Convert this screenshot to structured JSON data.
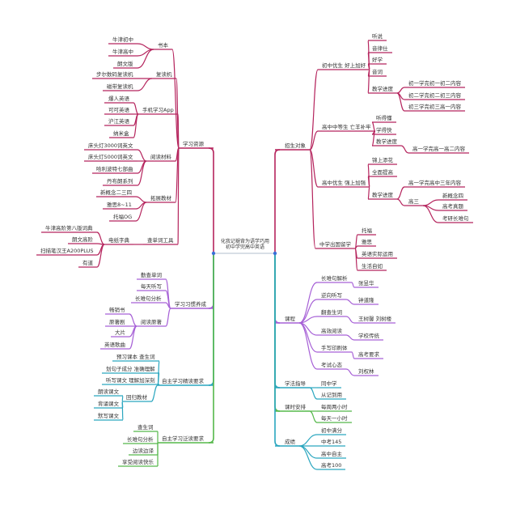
{
  "center": {
    "line1": "化我记褪背为语学巧用",
    "line2": "初中学完高中英语"
  },
  "colors": {
    "pink": "#b5245d",
    "purple": "#a660d6",
    "teal": "#2aa6bf",
    "green": "#55b84a",
    "dot": "#3a6fd8"
  },
  "left": [
    {
      "label": "学习资源",
      "color": "pink",
      "children": [
        {
          "label": "书本",
          "children": [
            {
              "label": "牛津初中"
            },
            {
              "label": "牛津高中"
            },
            {
              "label": "朗文版"
            }
          ]
        },
        {
          "label": "复读机",
          "children": [
            {
              "label": "步尔数码复读机"
            },
            {
              "label": "磁带复读机"
            }
          ]
        },
        {
          "label": "手机学习App",
          "children": [
            {
              "label": "爆人英语"
            },
            {
              "label": "可可英语"
            },
            {
              "label": "沪江英语"
            },
            {
              "label": "纳米盒"
            }
          ]
        },
        {
          "label": "阅读材料",
          "children": [
            {
              "label": "床头灯3000词英文"
            },
            {
              "label": "床头灯5000词英文"
            },
            {
              "label": "哈利波特七部曲"
            },
            {
              "label": "丹布朗系列"
            }
          ]
        },
        {
          "label": "拓展教材",
          "children": [
            {
              "label": "新概念二三四"
            },
            {
              "label": "雅思8~11"
            },
            {
              "label": "托福OG"
            }
          ]
        },
        {
          "label": "查单词工具",
          "children": [
            {
              "label": "电纸字典",
              "children": [
                {
                  "label": "牛津高阶第八版词典"
                },
                {
                  "label": "朗文高阶"
                },
                {
                  "label": "扫描笔汉王A200PLUS"
                },
                {
                  "label": "有道"
                }
              ]
            }
          ]
        }
      ]
    },
    {
      "label": "学习习惯养成",
      "color": "purple",
      "children": [
        {
          "label": "勤查单词"
        },
        {
          "label": "每天听写"
        },
        {
          "label": "长难句分析"
        },
        {
          "label": "阅读原著",
          "children": [
            {
              "label": "畅销书"
            },
            {
              "label": "原著剧"
            },
            {
              "label": "大片"
            },
            {
              "label": "英语歌曲"
            }
          ]
        }
      ]
    },
    {
      "label": "自主学习精读要求",
      "color": "teal",
      "children": [
        {
          "label": "预习课本 查生词"
        },
        {
          "label": "划句子成分 准确理解"
        },
        {
          "label": "听写课文 理解加深刻"
        },
        {
          "label": "回归教材",
          "children": [
            {
              "label": "朗读课文"
            },
            {
              "label": "背诵课文"
            },
            {
              "label": "默写课文"
            }
          ]
        }
      ]
    },
    {
      "label": "自主学习泛读要求",
      "color": "green",
      "children": [
        {
          "label": "查生词"
        },
        {
          "label": "长难句分析"
        },
        {
          "label": "边读边译"
        },
        {
          "label": "享受阅读快乐"
        }
      ]
    }
  ],
  "right": [
    {
      "label": "招生对象",
      "color": "pink",
      "children": [
        {
          "label": "初中优生 好上加好",
          "children": [
            {
              "label": "听说"
            },
            {
              "label": "音律仕"
            },
            {
              "label": "好学"
            },
            {
              "label": "音词"
            },
            {
              "label": "教学进度",
              "children": [
                {
                  "label": "初一学完初一初二内容"
                },
                {
                  "label": "初二学完初二初三内容"
                },
                {
                  "label": "初三学完初三高一内容"
                }
              ]
            }
          ]
        },
        {
          "label": "高中中等生 亡羊补牢",
          "children": [
            {
              "label": "听得懂"
            },
            {
              "label": "学得快"
            },
            {
              "label": "教学进度",
              "children": [
                {
                  "label": "高一学完高一高二内容"
                }
              ]
            }
          ]
        },
        {
          "label": "高中优生 强上加强",
          "children": [
            {
              "label": "锦上添花"
            },
            {
              "label": "全面提高"
            },
            {
              "label": "教学进度",
              "children": [
                {
                  "label": "高一学完高中三年内容"
                },
                {
                  "label": "高三",
                  "children": [
                    {
                      "label": "新概念四"
                    },
                    {
                      "label": "高考真题"
                    },
                    {
                      "label": "考研长难句"
                    }
                  ]
                }
              ]
            }
          ]
        },
        {
          "label": "中学出国留学",
          "children": [
            {
              "label": "托福"
            },
            {
              "label": "雅思"
            },
            {
              "label": "英语实际运用"
            },
            {
              "label": "生活自如"
            }
          ]
        }
      ]
    },
    {
      "label": "课程",
      "color": "purple",
      "children": [
        {
          "label": "长难句解析",
          "children": [
            {
              "label": "张昱华"
            }
          ]
        },
        {
          "label": "逆向听写",
          "children": [
            {
              "label": "钟道隆"
            }
          ]
        },
        {
          "label": "翻查生词",
          "children": [
            {
              "label": "王树馨 刘树楼"
            }
          ]
        },
        {
          "label": "高效阅读",
          "children": [
            {
              "label": "学校传统"
            }
          ]
        },
        {
          "label": "手写印刷体",
          "children": [
            {
              "label": "高考要求"
            }
          ]
        },
        {
          "label": "考试心态",
          "children": [
            {
              "label": "刘权林"
            }
          ]
        }
      ]
    },
    {
      "label": "学法指导",
      "color": "teal",
      "children": [
        {
          "label": "同中学"
        },
        {
          "label": "从记到用"
        }
      ]
    },
    {
      "label": "课时安排",
      "color": "green",
      "children": [
        {
          "label": "每周两小时"
        },
        {
          "label": "每天一小时"
        }
      ]
    },
    {
      "label": "成绩",
      "color": "teal",
      "children": [
        {
          "label": "初中满分"
        },
        {
          "label": "中考145"
        },
        {
          "label": "高中自主"
        },
        {
          "label": "高考100"
        }
      ]
    }
  ]
}
